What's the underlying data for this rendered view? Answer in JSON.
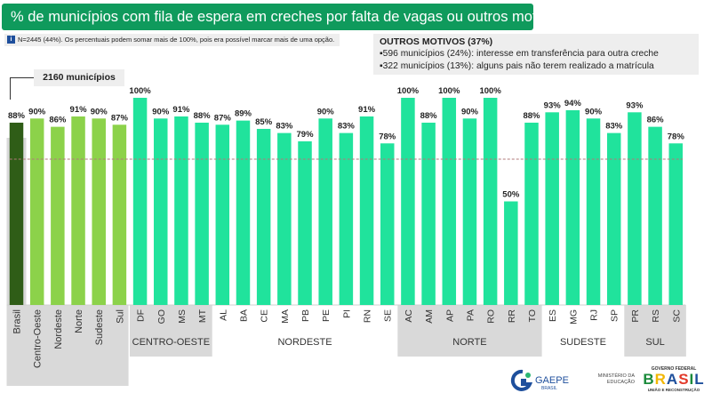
{
  "title": "% de municípios com fila de espera em creches por falta de vagas ou outros motivos",
  "note": "N=2445 (44%). Os percentuais podem somar mais de 100%, pois era possível marcar mais de uma opção.",
  "outros": {
    "title": "OUTROS MOTIVOS (37%)",
    "items": [
      "▪596 municípios (24%): interesse em transferência para outra creche",
      "▪322 municípios (13%): alguns pais não terem realizado a matrícula"
    ]
  },
  "callout": "2160 municípios",
  "colors": {
    "brasil": "#2f5d17",
    "regions": "#8cd24a",
    "states": "#20e39c",
    "title_bg": "#0f9a5c",
    "group_band": "#d9d9d9"
  },
  "chart_data": {
    "type": "bar",
    "categories": [
      "Brasil",
      "Centro-Oeste",
      "Nordeste",
      "Norte",
      "Sudeste",
      "Sul",
      "DF",
      "GO",
      "MS",
      "MT",
      "AL",
      "BA",
      "CE",
      "MA",
      "PB",
      "PE",
      "PI",
      "RN",
      "SE",
      "AC",
      "AM",
      "AP",
      "PA",
      "RO",
      "RR",
      "TO",
      "ES",
      "MG",
      "RJ",
      "SP",
      "PR",
      "RS",
      "SC"
    ],
    "values": [
      88,
      90,
      86,
      91,
      90,
      87,
      100,
      90,
      91,
      88,
      87,
      89,
      85,
      83,
      79,
      90,
      83,
      91,
      78,
      100,
      88,
      100,
      90,
      100,
      50,
      88,
      93,
      94,
      90,
      83,
      93,
      86,
      78
    ],
    "value_labels": [
      "88%",
      "90%",
      "86%",
      "91%",
      "90%",
      "87%",
      "100%",
      "90%",
      "91%",
      "88%",
      "87%",
      "89%",
      "85%",
      "83%",
      "79%",
      "90%",
      "83%",
      "91%",
      "78%",
      "100%",
      "88%",
      "100%",
      "90%",
      "100%",
      "50%",
      "88%",
      "93%",
      "94%",
      "90%",
      "83%",
      "93%",
      "86%",
      "78%"
    ],
    "ylim": [
      0,
      100
    ],
    "reference_line": 88,
    "groups": [
      {
        "label": "CENTRO-OESTE",
        "first": 6,
        "last": 9
      },
      {
        "label": "NORDESTE",
        "first": 10,
        "last": 18
      },
      {
        "label": "NORTE",
        "first": 19,
        "last": 25
      },
      {
        "label": "SUDESTE",
        "first": 26,
        "last": 29
      },
      {
        "label": "SUL",
        "first": 30,
        "last": 32
      }
    ]
  },
  "logos": {
    "gaepe_name": "GAEPE",
    "gaepe_sub": "BRASIL",
    "ministry": [
      "MINISTÉRIO DA",
      "EDUCAÇÃO"
    ],
    "gov_top": "GOVERNO FEDERAL",
    "gov_brasil": [
      "B",
      "R",
      "A",
      "S",
      "I",
      "L"
    ],
    "gov_sub": "UNIÃO E RECONSTRUÇÃO"
  }
}
